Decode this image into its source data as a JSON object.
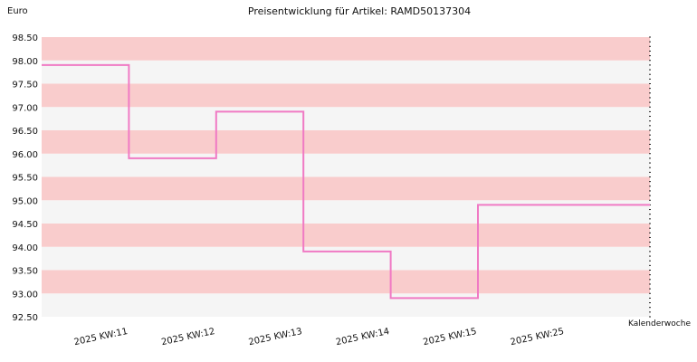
{
  "chart_data": {
    "type": "line",
    "title": "Preisentwicklung für Artikel: RAMD50137304",
    "ylabel": "Euro",
    "xlabel": "Kalenderwoche",
    "categories": [
      "2025 KW:11",
      "2025 KW:12",
      "2025 KW:13",
      "2025 KW:14",
      "2025 KW:15",
      "2025 KW:25"
    ],
    "series": [
      {
        "values": [
          97.9,
          95.9,
          96.9,
          93.9,
          92.9,
          94.9
        ]
      }
    ],
    "ylim": [
      92.5,
      98.5
    ],
    "yticks": [
      "92.50",
      "93.00",
      "93.50",
      "94.00",
      "94.50",
      "95.00",
      "95.50",
      "96.00",
      "96.50",
      "97.00",
      "97.50",
      "98.00",
      "98.50"
    ],
    "step": true,
    "line_color": "#f07ac4",
    "band_colors": [
      "#f9cccc",
      "#f5f5f5"
    ]
  }
}
